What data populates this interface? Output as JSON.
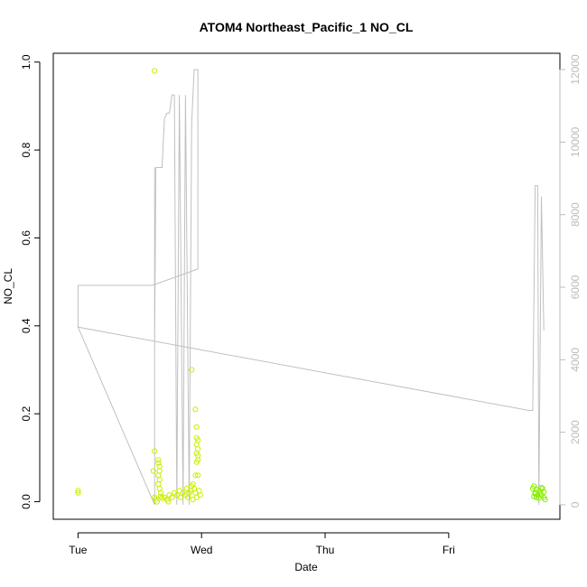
{
  "chart_data": {
    "type": "scatter",
    "title": "ATOM4 Northeast_Pacific_1 NO_CL",
    "xlabel": "Date",
    "ylabel": "NO_CL",
    "x_ticks": [
      "Tue",
      "Wed",
      "Thu",
      "Fri"
    ],
    "x_range_days": [
      -0.2,
      3.9
    ],
    "ylim": [
      -0.04,
      1.02
    ],
    "y_ticks": [
      0.0,
      0.2,
      0.4,
      0.6,
      0.8,
      1.0
    ],
    "y2lim": [
      -400,
      12450
    ],
    "y2_ticks": [
      0,
      2000,
      4000,
      6000,
      8000,
      10000,
      12000
    ],
    "grid": false,
    "legend": "none",
    "colors": {
      "points_early": "#ccee00",
      "points_late": "#88ee00",
      "altitude_line": "#c0c0c0"
    },
    "series": [
      {
        "kind": "points",
        "points": [
          [
            0.0,
            0.02
          ],
          [
            0.0,
            0.025
          ],
          [
            0.62,
            0.98
          ],
          [
            0.62,
            0.115
          ],
          [
            0.61,
            0.07
          ],
          [
            0.62,
            0.01
          ],
          [
            0.63,
            0.005
          ],
          [
            0.64,
            0.0
          ],
          [
            0.65,
            0.095
          ],
          [
            0.65,
            0.088
          ],
          [
            0.66,
            0.08
          ],
          [
            0.66,
            0.07
          ],
          [
            0.65,
            0.06
          ],
          [
            0.66,
            0.05
          ],
          [
            0.65,
            0.04
          ],
          [
            0.66,
            0.03
          ],
          [
            0.67,
            0.02
          ],
          [
            0.67,
            0.012
          ],
          [
            0.68,
            0.008
          ],
          [
            0.7,
            0.01
          ],
          [
            0.72,
            0.005
          ],
          [
            0.73,
            0.0
          ],
          [
            0.74,
            0.015
          ],
          [
            0.76,
            0.01
          ],
          [
            0.78,
            0.02
          ],
          [
            0.8,
            0.015
          ],
          [
            0.82,
            0.025
          ],
          [
            0.83,
            0.01
          ],
          [
            0.85,
            0.02
          ],
          [
            0.87,
            0.015
          ],
          [
            0.88,
            0.03
          ],
          [
            0.9,
            0.02
          ],
          [
            0.91,
            0.025
          ],
          [
            0.92,
            0.035
          ],
          [
            0.93,
            0.04
          ],
          [
            0.94,
            0.03
          ],
          [
            0.95,
            0.02
          ],
          [
            0.96,
            0.01
          ],
          [
            0.92,
            0.3
          ],
          [
            0.95,
            0.21
          ],
          [
            0.96,
            0.17
          ],
          [
            0.96,
            0.145
          ],
          [
            0.97,
            0.14
          ],
          [
            0.96,
            0.13
          ],
          [
            0.97,
            0.12
          ],
          [
            0.96,
            0.11
          ],
          [
            0.97,
            0.105
          ],
          [
            0.97,
            0.095
          ],
          [
            0.96,
            0.09
          ],
          [
            0.97,
            0.06
          ],
          [
            0.95,
            0.06
          ],
          [
            0.98,
            0.025
          ],
          [
            0.99,
            0.015
          ],
          [
            0.93,
            0.005
          ],
          [
            0.89,
            0.01
          ]
        ]
      },
      {
        "kind": "points",
        "points": [
          [
            3.68,
            0.03
          ],
          [
            3.69,
            0.035
          ],
          [
            3.7,
            0.02
          ],
          [
            3.71,
            0.01
          ],
          [
            3.72,
            0.015
          ],
          [
            3.73,
            0.025
          ],
          [
            3.74,
            0.02
          ],
          [
            3.75,
            0.015
          ],
          [
            3.76,
            0.03
          ],
          [
            3.77,
            0.01
          ],
          [
            3.78,
            0.005
          ],
          [
            3.69,
            0.012
          ],
          [
            3.71,
            0.028
          ],
          [
            3.73,
            0.008
          ],
          [
            3.75,
            0.032
          ],
          [
            3.77,
            0.022
          ],
          [
            3.7,
            0.018
          ]
        ]
      },
      {
        "kind": "line",
        "axis": "right",
        "points": [
          [
            0.0,
            4900
          ],
          [
            0.0,
            6050
          ],
          [
            0.6,
            6050
          ],
          [
            0.97,
            6500
          ],
          [
            0.97,
            12000
          ],
          [
            0.94,
            12000
          ],
          [
            0.92,
            10500
          ],
          [
            0.9,
            0
          ],
          [
            0.87,
            11300
          ],
          [
            0.85,
            0
          ],
          [
            0.82,
            11300
          ],
          [
            0.8,
            0
          ],
          [
            0.78,
            11300
          ],
          [
            0.76,
            11300
          ],
          [
            0.74,
            10800
          ],
          [
            0.72,
            10800
          ],
          [
            0.7,
            10650
          ],
          [
            0.68,
            9300
          ],
          [
            0.66,
            9300
          ],
          [
            0.65,
            9300
          ],
          [
            0.63,
            9300
          ],
          [
            0.62,
            4300
          ],
          [
            0.62,
            9300
          ],
          [
            0.62,
            0
          ],
          [
            0.0,
            4900
          ],
          [
            3.65,
            2600
          ],
          [
            3.68,
            2600
          ],
          [
            3.7,
            8800
          ],
          [
            3.72,
            8800
          ],
          [
            3.73,
            0
          ],
          [
            3.75,
            8500
          ],
          [
            3.77,
            4800
          ]
        ]
      }
    ]
  }
}
